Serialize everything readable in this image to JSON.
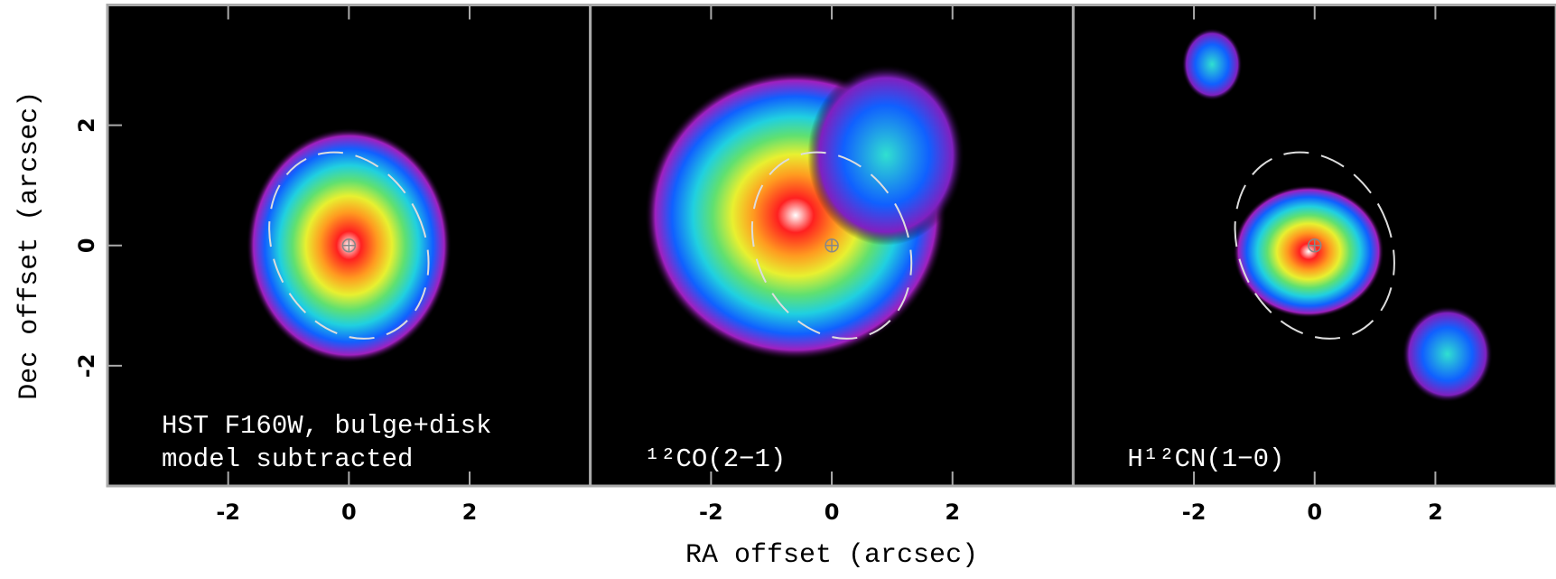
{
  "chart_data": [
    {
      "type": "image",
      "annotation": [
        "HST F160W, bulge+disk",
        "model subtracted"
      ],
      "ylabel": "Dec offset (arcsec)",
      "xlim": [
        -4,
        4
      ],
      "xticks": [
        -2,
        0,
        2
      ],
      "ylim": [
        -4,
        4
      ],
      "yticks": [
        -2,
        0,
        2
      ]
    },
    {
      "type": "image",
      "annotation": [
        "¹²CO(2−1)"
      ],
      "xlabel": "RA offset (arcsec)",
      "xlim": [
        -4,
        4
      ],
      "xticks": [
        -2,
        0,
        2
      ],
      "ylim": [
        -4,
        4
      ]
    },
    {
      "type": "image",
      "annotation": [
        "H¹²CN(1−0)"
      ],
      "xlim": [
        -4,
        4
      ],
      "xticks": [
        -2,
        0,
        2
      ],
      "ylim": [
        -4,
        4
      ]
    }
  ]
}
